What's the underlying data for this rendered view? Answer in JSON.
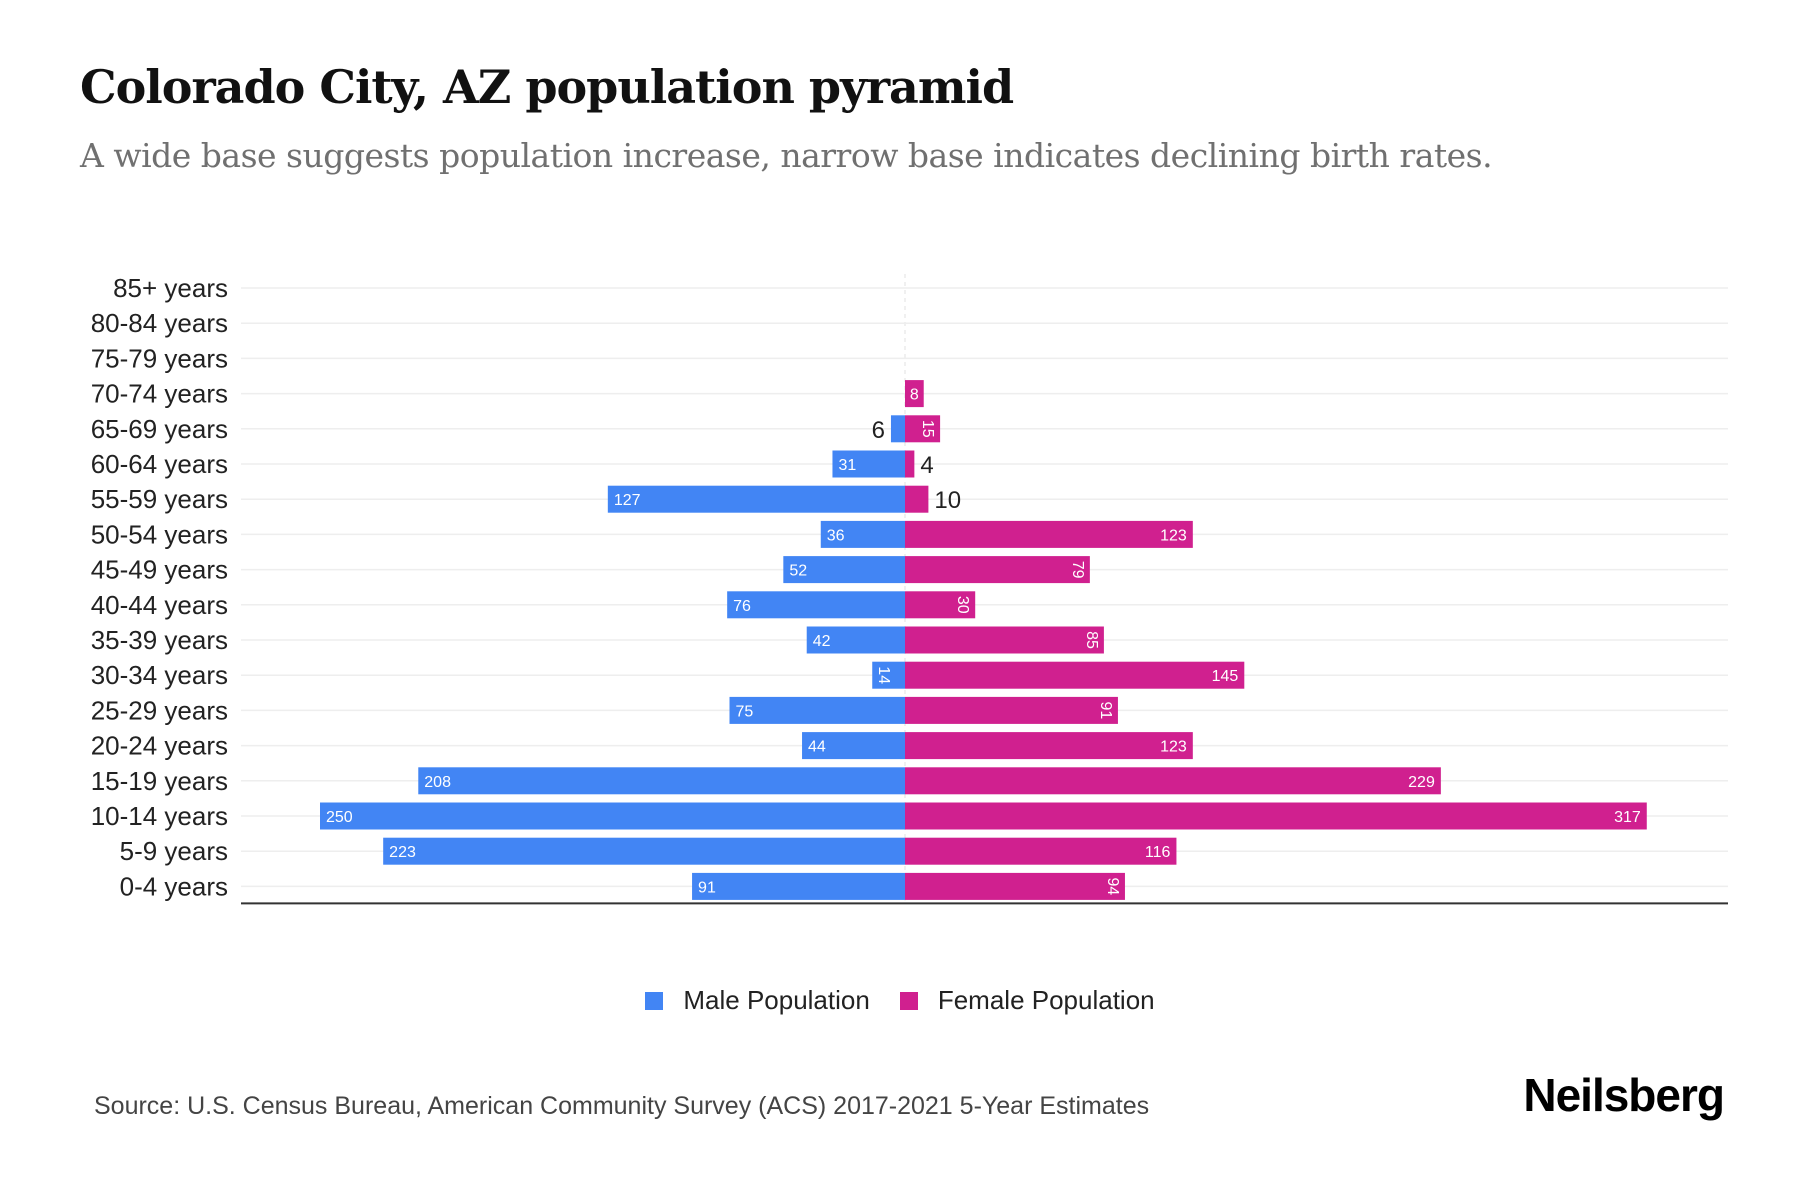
{
  "header": {
    "title": "Colorado City, AZ population pyramid",
    "subtitle": "A wide base suggests population increase, narrow base indicates declining birth rates."
  },
  "colors": {
    "male": "#4285F4",
    "female": "#D0208F",
    "grid": "#eeeeee",
    "axis": "#333333"
  },
  "chart_data": {
    "type": "bar",
    "orientation": "horizontal-pyramid",
    "title": "Colorado City, AZ population pyramid",
    "categories": [
      "85+ years",
      "80-84 years",
      "75-79 years",
      "70-74 years",
      "65-69 years",
      "60-64 years",
      "55-59 years",
      "50-54 years",
      "45-49 years",
      "40-44 years",
      "35-39 years",
      "30-34 years",
      "25-29 years",
      "20-24 years",
      "15-19 years",
      "10-14 years",
      "5-9 years",
      "0-4 years"
    ],
    "series": [
      {
        "name": "Male Population",
        "side": "left",
        "values": [
          0,
          0,
          0,
          0,
          6,
          31,
          127,
          36,
          52,
          76,
          42,
          14,
          75,
          44,
          208,
          250,
          223,
          91
        ]
      },
      {
        "name": "Female Population",
        "side": "right",
        "values": [
          0,
          0,
          0,
          8,
          15,
          4,
          10,
          123,
          79,
          30,
          85,
          145,
          91,
          123,
          229,
          317,
          116,
          94
        ]
      }
    ],
    "xlabel": "",
    "ylabel": "",
    "xlim": [
      -250,
      317
    ],
    "grid": true,
    "legend": "bottom-center"
  },
  "legend": {
    "male_label": "Male Population",
    "female_label": "Female Population"
  },
  "footer": {
    "source": "Source: U.S. Census Bureau, American Community Survey (ACS) 2017-2021 5-Year Estimates",
    "brand": "Neilsberg"
  }
}
